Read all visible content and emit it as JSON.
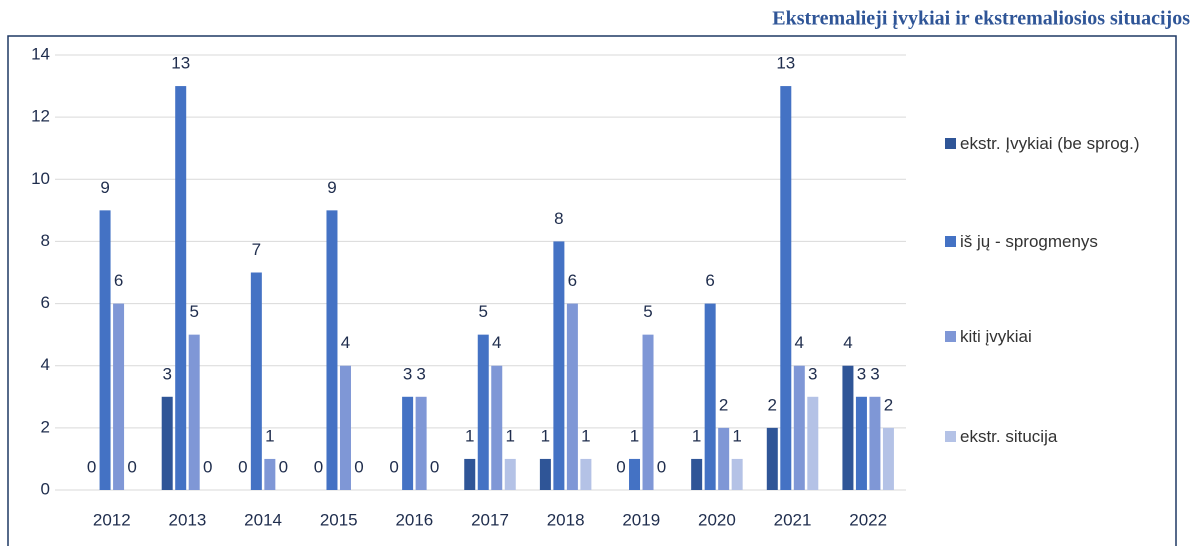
{
  "chart_data": {
    "type": "bar",
    "title": "Ekstremalieji įvykiai ir ekstremaliosios situacijos",
    "categories": [
      "2012",
      "2013",
      "2014",
      "2015",
      "2016",
      "2017",
      "2018",
      "2019",
      "2020",
      "2021",
      "2022"
    ],
    "series": [
      {
        "name": "ekstr. Įvykiai (be sprog.)",
        "color": "#2f5597",
        "values": [
          0,
          3,
          0,
          0,
          0,
          1,
          1,
          0,
          1,
          2,
          4
        ]
      },
      {
        "name": "iš jų - sprogmenys",
        "color": "#4472c4",
        "values": [
          9,
          13,
          7,
          9,
          3,
          5,
          8,
          1,
          6,
          13,
          3
        ]
      },
      {
        "name": "kiti įvykiai",
        "color": "#7f97d6",
        "values": [
          6,
          5,
          1,
          4,
          3,
          4,
          6,
          5,
          2,
          4,
          3
        ]
      },
      {
        "name": "ekstr. situcija",
        "color": "#b4c2e6",
        "values": [
          0,
          0,
          0,
          0,
          0,
          1,
          1,
          0,
          1,
          3,
          2
        ]
      }
    ],
    "ylim": [
      0,
      14
    ],
    "yticks": [
      0,
      2,
      4,
      6,
      8,
      10,
      12,
      14
    ],
    "grid": true,
    "legend": "right"
  }
}
